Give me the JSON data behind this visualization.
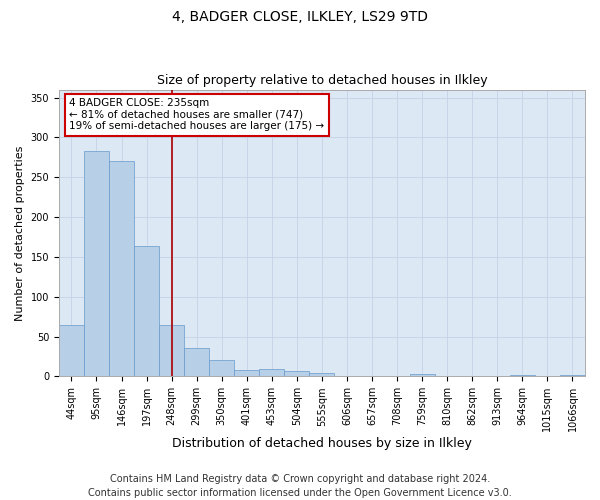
{
  "title": "4, BADGER CLOSE, ILKLEY, LS29 9TD",
  "subtitle": "Size of property relative to detached houses in Ilkley",
  "xlabel": "Distribution of detached houses by size in Ilkley",
  "ylabel": "Number of detached properties",
  "categories": [
    "44sqm",
    "95sqm",
    "146sqm",
    "197sqm",
    "248sqm",
    "299sqm",
    "350sqm",
    "401sqm",
    "453sqm",
    "504sqm",
    "555sqm",
    "606sqm",
    "657sqm",
    "708sqm",
    "759sqm",
    "810sqm",
    "862sqm",
    "913sqm",
    "964sqm",
    "1015sqm",
    "1066sqm"
  ],
  "values": [
    65,
    283,
    270,
    163,
    65,
    35,
    20,
    8,
    9,
    7,
    4,
    0,
    0,
    0,
    3,
    0,
    0,
    0,
    2,
    0,
    2
  ],
  "bar_color": "#b8cfe8",
  "bar_edge_color": "#6699cc",
  "vline_x": 4.5,
  "vline_color": "#aa0000",
  "annotation_text": "4 BADGER CLOSE: 235sqm\n← 81% of detached houses are smaller (747)\n19% of semi-detached houses are larger (175) →",
  "annotation_box_color": "#ffffff",
  "annotation_box_edge_color": "#cc0000",
  "ylim": [
    0,
    360
  ],
  "yticks": [
    0,
    50,
    100,
    150,
    200,
    250,
    300,
    350
  ],
  "grid_color": "#c8d4e8",
  "bg_color": "#dde8f5",
  "fig_bg_color": "#ffffff",
  "footer": "Contains HM Land Registry data © Crown copyright and database right 2024.\nContains public sector information licensed under the Open Government Licence v3.0.",
  "title_fontsize": 10,
  "subtitle_fontsize": 9,
  "footer_fontsize": 7,
  "tick_fontsize": 7,
  "ylabel_fontsize": 8,
  "xlabel_fontsize": 9,
  "annot_fontsize": 7.5
}
